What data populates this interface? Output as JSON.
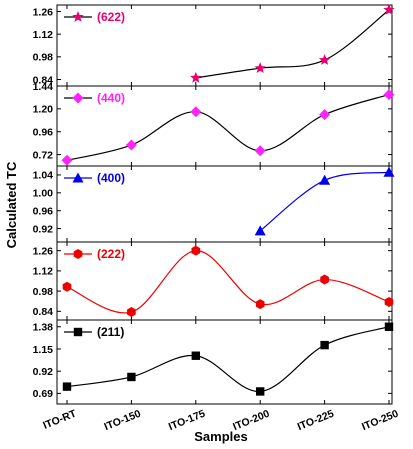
{
  "chart_data": {
    "type": "line",
    "xlabel": "Samples",
    "ylabel": "Calculated TC",
    "categories": [
      "ITO-RT",
      "ITO-150",
      "ITO-175",
      "ITO-200",
      "ITO-225",
      "ITO-250"
    ],
    "panels": [
      {
        "name": "(622)",
        "marker": "star",
        "color": "#e8006e",
        "line_color": "#000000",
        "ylim": [
          0.8,
          1.3
        ],
        "yticks": [
          "0.84",
          "0.98",
          "1.12",
          "1.26"
        ],
        "yticks_values": [
          0.84,
          0.98,
          1.12,
          1.26
        ],
        "values": [
          null,
          null,
          0.85,
          0.91,
          0.96,
          1.27
        ]
      },
      {
        "name": "(440)",
        "marker": "diamond",
        "color": "#ff22ff",
        "line_color": "#000000",
        "ylim": [
          0.6,
          1.44
        ],
        "yticks": [
          "0.72",
          "0.96",
          "1.20",
          "1.44"
        ],
        "yticks_values": [
          0.72,
          0.96,
          1.2,
          1.44
        ],
        "values": [
          0.66,
          0.82,
          1.17,
          0.76,
          1.14,
          1.35
        ]
      },
      {
        "name": "(400)",
        "marker": "triangle",
        "color": "#0000ee",
        "line_color": "#0000ee",
        "ylim": [
          0.89,
          1.06
        ],
        "yticks": [
          "0.92",
          "0.96",
          "1.00",
          "1.04"
        ],
        "yticks_values": [
          0.92,
          0.96,
          1.0,
          1.04
        ],
        "values": [
          null,
          null,
          null,
          0.915,
          1.028,
          1.046
        ]
      },
      {
        "name": "(222)",
        "marker": "hexagon",
        "color": "#ee0000",
        "line_color": "#ee0000",
        "ylim": [
          0.78,
          1.32
        ],
        "yticks": [
          "0.84",
          "0.98",
          "1.12",
          "1.26"
        ],
        "yticks_values": [
          0.84,
          0.98,
          1.12,
          1.26
        ],
        "values": [
          1.01,
          0.835,
          1.26,
          0.89,
          1.06,
          0.905
        ]
      },
      {
        "name": "(211)",
        "marker": "square",
        "color": "#000000",
        "line_color": "#000000",
        "ylim": [
          0.58,
          1.45
        ],
        "yticks": [
          "0.69",
          "0.92",
          "1.15",
          "1.38"
        ],
        "yticks_values": [
          0.69,
          0.92,
          1.15,
          1.38
        ],
        "values": [
          0.76,
          0.86,
          1.08,
          0.71,
          1.19,
          1.38
        ]
      }
    ],
    "grid": false,
    "legend_position": "top-left"
  }
}
